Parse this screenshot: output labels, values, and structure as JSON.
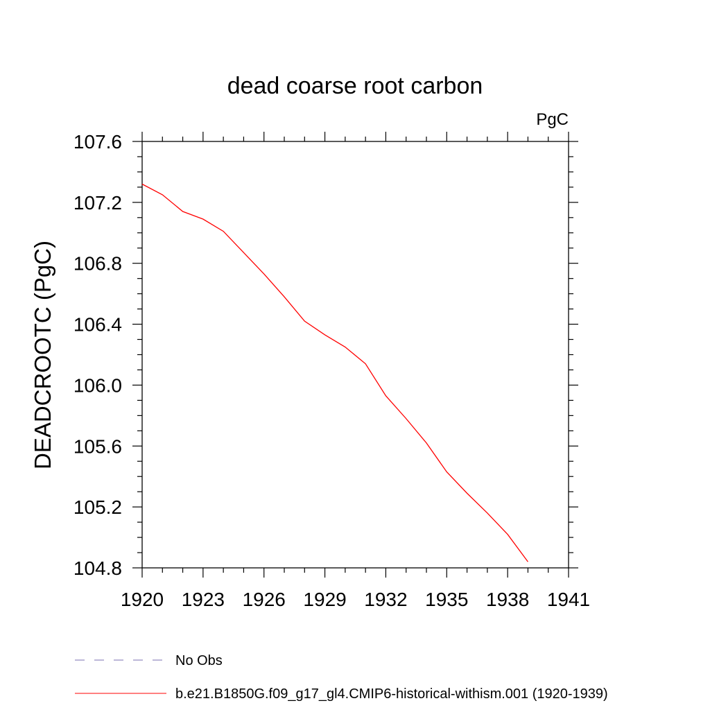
{
  "chart_data": {
    "type": "line",
    "title": "dead coarse root carbon",
    "units_label": "PgC",
    "xlabel": "",
    "ylabel": "DEADCROOTC  (PgC)",
    "xlim": [
      1920,
      1941
    ],
    "ylim": [
      104.8,
      107.6
    ],
    "xticks": [
      1920,
      1923,
      1926,
      1929,
      1932,
      1935,
      1938,
      1941
    ],
    "xtick_labels": [
      "1920",
      "1923",
      "1926",
      "1929",
      "1932",
      "1935",
      "1938",
      "1941"
    ],
    "yticks": [
      104.8,
      105.2,
      105.6,
      106.0,
      106.4,
      106.8,
      107.2,
      107.6
    ],
    "ytick_labels": [
      "104.8",
      "105.2",
      "105.6",
      "106.0",
      "106.4",
      "106.8",
      "107.2",
      "107.6"
    ],
    "grid": false,
    "legend_position": "bottom",
    "series": [
      {
        "name": "b.e21.B1850G.f09_g17_gl4.CMIP6-historical-withism.001 (1920-1939)",
        "color": "#ff0000",
        "line_style": "solid",
        "x": [
          1920,
          1921,
          1922,
          1923,
          1924,
          1925,
          1926,
          1927,
          1928,
          1929,
          1930,
          1931,
          1932,
          1933,
          1934,
          1935,
          1936,
          1937,
          1938,
          1939
        ],
        "values": [
          107.32,
          107.25,
          107.14,
          107.09,
          107.01,
          106.87,
          106.73,
          106.58,
          106.42,
          106.33,
          106.25,
          106.14,
          105.93,
          105.78,
          105.62,
          105.43,
          105.29,
          105.16,
          105.02,
          104.84
        ]
      }
    ],
    "legend": [
      {
        "label": "No Obs",
        "color": "#7a6fb0",
        "line_style": "dashed"
      },
      {
        "label": "b.e21.B1850G.f09_g17_gl4.CMIP6-historical-withism.001 (1920-1939)",
        "color": "#ff0000",
        "line_style": "solid"
      }
    ]
  }
}
